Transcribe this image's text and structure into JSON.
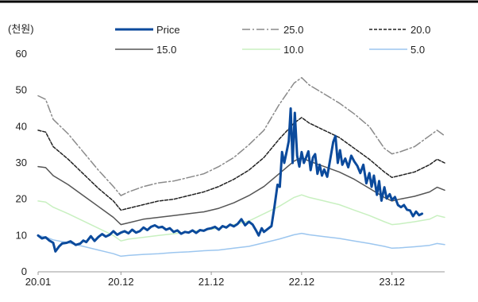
{
  "chart_data": {
    "type": "line",
    "ylabel": "(천원)",
    "ylim": [
      0,
      60
    ],
    "yticks": [
      0,
      10,
      20,
      30,
      40,
      50,
      60
    ],
    "xlim": [
      0,
      54
    ],
    "xticks": [
      {
        "x": 0,
        "label": "20.01"
      },
      {
        "x": 11,
        "label": "20.12"
      },
      {
        "x": 23,
        "label": "21.12"
      },
      {
        "x": 35,
        "label": "22.12"
      },
      {
        "x": 47,
        "label": "23.12"
      }
    ],
    "grid": false,
    "legend": "top",
    "series": [
      {
        "name": "Price",
        "color": "#0b4a9c",
        "dash": "",
        "width": 3,
        "points": [
          [
            0,
            10
          ],
          [
            0.5,
            9.2
          ],
          [
            1,
            9.5
          ],
          [
            1.5,
            8.6
          ],
          [
            2,
            8
          ],
          [
            2.3,
            5.6
          ],
          [
            2.8,
            7
          ],
          [
            3.2,
            7.8
          ],
          [
            3.8,
            8
          ],
          [
            4.3,
            8.4
          ],
          [
            5,
            7.4
          ],
          [
            5.6,
            7.8
          ],
          [
            6,
            8.6
          ],
          [
            6.4,
            8.2
          ],
          [
            7,
            9.8
          ],
          [
            7.5,
            8.5
          ],
          [
            8,
            9.6
          ],
          [
            8.5,
            10.4
          ],
          [
            9,
            9.7
          ],
          [
            9.5,
            10.2
          ],
          [
            10,
            11.2
          ],
          [
            10.5,
            10.2
          ],
          [
            11,
            10.8
          ],
          [
            11.5,
            11.2
          ],
          [
            12,
            10.6
          ],
          [
            12.5,
            11.6
          ],
          [
            13,
            10.8
          ],
          [
            13.5,
            11.2
          ],
          [
            14,
            12.2
          ],
          [
            14.5,
            11.5
          ],
          [
            15,
            12.4
          ],
          [
            15.5,
            12.8
          ],
          [
            16,
            12.2
          ],
          [
            16.5,
            12.4
          ],
          [
            17,
            11.6
          ],
          [
            17.5,
            12
          ],
          [
            18,
            11
          ],
          [
            18.5,
            11.4
          ],
          [
            19,
            10.5
          ],
          [
            19.5,
            11
          ],
          [
            20,
            10.8
          ],
          [
            20.5,
            11.4
          ],
          [
            21,
            10.7
          ],
          [
            21.5,
            11.5
          ],
          [
            22,
            11.3
          ],
          [
            22.5,
            11.8
          ],
          [
            23,
            12
          ],
          [
            23.5,
            12.4
          ],
          [
            24,
            11.6
          ],
          [
            24.5,
            12.6
          ],
          [
            25,
            12.2
          ],
          [
            25.5,
            13
          ],
          [
            26,
            12.5
          ],
          [
            26.5,
            13.2
          ],
          [
            27,
            14.5
          ],
          [
            27.5,
            12.8
          ],
          [
            28,
            13.8
          ],
          [
            28.5,
            13
          ],
          [
            29,
            11.2
          ],
          [
            29.3,
            10
          ],
          [
            29.7,
            12
          ],
          [
            30,
            11
          ],
          [
            30.5,
            11.8
          ],
          [
            31,
            12.6
          ],
          [
            31.4,
            18
          ],
          [
            31.8,
            24
          ],
          [
            32.1,
            23.4
          ],
          [
            32.4,
            33
          ],
          [
            32.7,
            30
          ],
          [
            33,
            33
          ],
          [
            33.3,
            36
          ],
          [
            33.55,
            45
          ],
          [
            33.8,
            30
          ],
          [
            34.1,
            43.8
          ],
          [
            34.4,
            32
          ],
          [
            34.7,
            29
          ],
          [
            35,
            33
          ],
          [
            35.3,
            30
          ],
          [
            35.6,
            31.5
          ],
          [
            35.9,
            33.2
          ],
          [
            36.2,
            28
          ],
          [
            36.5,
            31.5
          ],
          [
            36.8,
            32.4
          ],
          [
            37.1,
            27
          ],
          [
            37.4,
            29.5
          ],
          [
            37.7,
            26.5
          ],
          [
            38,
            28.2
          ],
          [
            38.4,
            26.2
          ],
          [
            38.8,
            31
          ],
          [
            39.2,
            35.8
          ],
          [
            39.5,
            37.4
          ],
          [
            39.8,
            30
          ],
          [
            40.1,
            33.5
          ],
          [
            40.4,
            29.5
          ],
          [
            40.8,
            31.2
          ],
          [
            41.2,
            28.8
          ],
          [
            41.6,
            32
          ],
          [
            42,
            30.4
          ],
          [
            42.4,
            29.2
          ],
          [
            42.8,
            27.2
          ],
          [
            43.2,
            29.5
          ],
          [
            43.6,
            24.4
          ],
          [
            44,
            27.2
          ],
          [
            44.3,
            23.4
          ],
          [
            44.6,
            26.5
          ],
          [
            45,
            21.2
          ],
          [
            45.3,
            25
          ],
          [
            45.6,
            19.6
          ],
          [
            46,
            23.3
          ],
          [
            46.3,
            20.2
          ],
          [
            46.7,
            21.4
          ],
          [
            47,
            19.8
          ],
          [
            47.4,
            20.6
          ],
          [
            47.8,
            18.4
          ],
          [
            48.2,
            17.8
          ],
          [
            48.6,
            18.4
          ],
          [
            49,
            17.1
          ],
          [
            49.4,
            16.9
          ],
          [
            49.8,
            15.3
          ],
          [
            50.2,
            16.6
          ],
          [
            50.6,
            15.6
          ],
          [
            51,
            16
          ]
        ]
      },
      {
        "name": "25.0",
        "color": "#8a8a8a",
        "dash": "10 3 2 3",
        "width": 1.5,
        "points": [
          [
            0,
            48.5
          ],
          [
            1,
            47.5
          ],
          [
            2,
            42
          ],
          [
            4,
            38
          ],
          [
            6,
            33
          ],
          [
            8,
            28
          ],
          [
            10,
            23.5
          ],
          [
            11,
            21
          ],
          [
            12,
            22
          ],
          [
            14,
            23.5
          ],
          [
            16,
            24.5
          ],
          [
            18,
            25
          ],
          [
            20,
            26
          ],
          [
            22,
            27
          ],
          [
            24,
            29
          ],
          [
            26,
            31.5
          ],
          [
            28,
            35
          ],
          [
            30,
            39
          ],
          [
            32,
            46
          ],
          [
            34,
            52
          ],
          [
            35,
            53.5
          ],
          [
            36,
            51.5
          ],
          [
            38,
            49
          ],
          [
            40,
            46.5
          ],
          [
            42,
            43.5
          ],
          [
            44,
            40
          ],
          [
            46,
            34
          ],
          [
            47,
            32.5
          ],
          [
            48,
            33
          ],
          [
            50,
            34.5
          ],
          [
            52,
            37.5
          ],
          [
            53,
            39
          ],
          [
            54,
            37.5
          ]
        ]
      },
      {
        "name": "20.0",
        "color": "#222222",
        "dash": "4 2",
        "width": 1.5,
        "points": [
          [
            0,
            39
          ],
          [
            1,
            38.5
          ],
          [
            2,
            34.5
          ],
          [
            4,
            31
          ],
          [
            6,
            27
          ],
          [
            8,
            23
          ],
          [
            10,
            19.5
          ],
          [
            11,
            17
          ],
          [
            12,
            17.5
          ],
          [
            14,
            18.5
          ],
          [
            16,
            19.5
          ],
          [
            18,
            20
          ],
          [
            20,
            21
          ],
          [
            22,
            22
          ],
          [
            24,
            23.5
          ],
          [
            26,
            25.5
          ],
          [
            28,
            28
          ],
          [
            30,
            31.5
          ],
          [
            32,
            36.5
          ],
          [
            34,
            41
          ],
          [
            35,
            42.5
          ],
          [
            36,
            41
          ],
          [
            38,
            39
          ],
          [
            40,
            37
          ],
          [
            42,
            34
          ],
          [
            44,
            31
          ],
          [
            46,
            27.5
          ],
          [
            47,
            26
          ],
          [
            48,
            26.5
          ],
          [
            50,
            27.5
          ],
          [
            52,
            29.5
          ],
          [
            53,
            31
          ],
          [
            54,
            30
          ]
        ]
      },
      {
        "name": "15.0",
        "color": "#555555",
        "dash": "",
        "width": 1.5,
        "points": [
          [
            0,
            29
          ],
          [
            1,
            28.7
          ],
          [
            2,
            26.5
          ],
          [
            4,
            24
          ],
          [
            6,
            21
          ],
          [
            8,
            18
          ],
          [
            10,
            15
          ],
          [
            11,
            13
          ],
          [
            12,
            13.5
          ],
          [
            14,
            14.5
          ],
          [
            16,
            15
          ],
          [
            18,
            15.5
          ],
          [
            20,
            16
          ],
          [
            22,
            16.5
          ],
          [
            24,
            17.5
          ],
          [
            26,
            19
          ],
          [
            28,
            21
          ],
          [
            30,
            23.5
          ],
          [
            32,
            27
          ],
          [
            34,
            30.5
          ],
          [
            35,
            31.5
          ],
          [
            36,
            30.5
          ],
          [
            38,
            29
          ],
          [
            40,
            27.5
          ],
          [
            42,
            25.5
          ],
          [
            44,
            23
          ],
          [
            46,
            20.5
          ],
          [
            47,
            19.5
          ],
          [
            48,
            20
          ],
          [
            50,
            20.8
          ],
          [
            52,
            22
          ],
          [
            53,
            23.3
          ],
          [
            54,
            22.5
          ]
        ]
      },
      {
        "name": "10.0",
        "color": "#c8f0c0",
        "dash": "",
        "width": 1.5,
        "points": [
          [
            0,
            19.5
          ],
          [
            1,
            19.2
          ],
          [
            2,
            17.8
          ],
          [
            4,
            16
          ],
          [
            6,
            14
          ],
          [
            8,
            12
          ],
          [
            10,
            10
          ],
          [
            11,
            8.5
          ],
          [
            12,
            9
          ],
          [
            14,
            9.5
          ],
          [
            16,
            10
          ],
          [
            18,
            10.5
          ],
          [
            20,
            11
          ],
          [
            22,
            11.5
          ],
          [
            24,
            12
          ],
          [
            26,
            13
          ],
          [
            28,
            14
          ],
          [
            30,
            16
          ],
          [
            32,
            18
          ],
          [
            34,
            20.5
          ],
          [
            35,
            21.2
          ],
          [
            36,
            20.5
          ],
          [
            38,
            19.5
          ],
          [
            40,
            18.5
          ],
          [
            42,
            17
          ],
          [
            44,
            15.5
          ],
          [
            46,
            13.8
          ],
          [
            47,
            13
          ],
          [
            48,
            13.2
          ],
          [
            50,
            13.8
          ],
          [
            52,
            14.5
          ],
          [
            53,
            15.5
          ],
          [
            54,
            15
          ]
        ]
      },
      {
        "name": "5.0",
        "color": "#9cc6ef",
        "dash": "",
        "width": 1.5,
        "points": [
          [
            0,
            10
          ],
          [
            1,
            9.6
          ],
          [
            2,
            8.8
          ],
          [
            4,
            8
          ],
          [
            6,
            7
          ],
          [
            8,
            6
          ],
          [
            10,
            5
          ],
          [
            11,
            4.3
          ],
          [
            12,
            4.5
          ],
          [
            14,
            4.8
          ],
          [
            16,
            5
          ],
          [
            18,
            5.3
          ],
          [
            20,
            5.5
          ],
          [
            22,
            5.8
          ],
          [
            24,
            6
          ],
          [
            26,
            6.5
          ],
          [
            28,
            7
          ],
          [
            30,
            8
          ],
          [
            32,
            9
          ],
          [
            34,
            10.2
          ],
          [
            35,
            10.6
          ],
          [
            36,
            10.2
          ],
          [
            38,
            9.7
          ],
          [
            40,
            9.2
          ],
          [
            42,
            8.5
          ],
          [
            44,
            7.8
          ],
          [
            46,
            7
          ],
          [
            47,
            6.5
          ],
          [
            48,
            6.6
          ],
          [
            50,
            6.9
          ],
          [
            52,
            7.3
          ],
          [
            53,
            7.8
          ],
          [
            54,
            7.5
          ]
        ]
      }
    ]
  }
}
